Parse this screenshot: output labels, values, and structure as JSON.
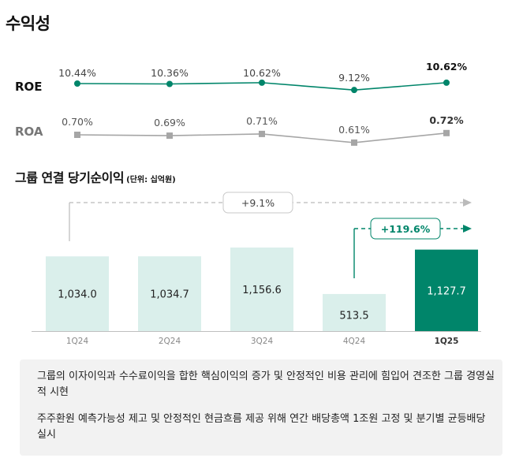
{
  "page_title": "수익성",
  "ratio_labels": {
    "roe": "ROE",
    "roa": "ROA"
  },
  "section_title": "그룹 연결 당기순이익",
  "section_unit": "(단위: 십억원)",
  "notes": [
    "그룹의 이자이익과 수수료이익을 합한 핵심이익의 증가 및 안정적인 비용 관리에 힘입어 견조한 그룹 경영실적 시현",
    "주주환원 예측가능성 제고 및 안정적인 현금흐름 제공 위해 연간 배당총액 1조원 고정 및 분기별 균등배당 실시"
  ],
  "colors": {
    "accent": "#00856a",
    "roa_gray": "#a6a6a6",
    "bar_light": "#daefeb",
    "arrow_gray": "#bbbbbb",
    "axis": "#bfbfbf"
  },
  "chart_data": [
    {
      "type": "line",
      "categories": [
        "1Q24",
        "2Q24",
        "3Q24",
        "4Q24",
        "1Q25"
      ],
      "series": [
        {
          "name": "ROE",
          "values": [
            10.44,
            10.36,
            10.62,
            9.12,
            10.62
          ],
          "labels": [
            "10.44%",
            "10.36%",
            "10.62%",
            "9.12%",
            "10.62%"
          ]
        },
        {
          "name": "ROA",
          "values": [
            0.7,
            0.69,
            0.71,
            0.61,
            0.72
          ],
          "labels": [
            "0.70%",
            "0.69%",
            "0.71%",
            "0.61%",
            "0.72%"
          ]
        }
      ]
    },
    {
      "type": "bar",
      "title": "그룹 연결 당기순이익",
      "unit": "(단위: 십억원)",
      "categories": [
        "1Q24",
        "2Q24",
        "3Q24",
        "4Q24",
        "1Q25"
      ],
      "values": [
        1034.0,
        1034.7,
        1156.6,
        513.5,
        1127.7
      ],
      "value_labels": [
        "1,034.0",
        "1,034.7",
        "1,156.6",
        "513.5",
        "1,127.7"
      ],
      "highlight_index": 4,
      "annotations": [
        {
          "text": "+9.1%",
          "from": "1Q24",
          "to": "1Q25"
        },
        {
          "text": "+119.6%",
          "from": "4Q24",
          "to": "1Q25"
        }
      ]
    }
  ]
}
